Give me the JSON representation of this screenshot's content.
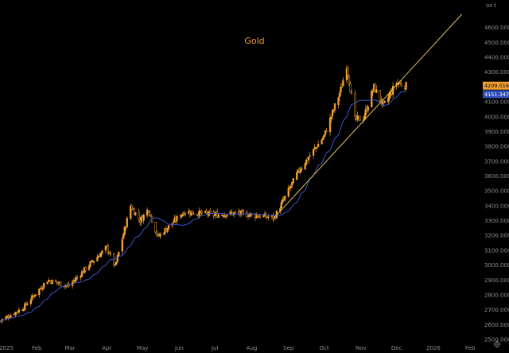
{
  "chart_data": {
    "type": "candlestick",
    "title": "Gold",
    "unit_label": "oz t",
    "ylim": [
      2500,
      4700
    ],
    "grid": false,
    "y_ticks": [
      "4600.0000",
      "4500.0000",
      "4400.0000",
      "4300.0000",
      "4200.0000",
      "4100.0000",
      "4000.0000",
      "3900.0000",
      "3800.0000",
      "3700.0000",
      "3600.0000",
      "3500.0000",
      "3400.0000",
      "3300.0000",
      "3200.0000",
      "3100.0000",
      "3000.0000",
      "2900.0000",
      "2800.0000",
      "2700.0000",
      "2600.0000",
      "2500.0000"
    ],
    "x_ticks": [
      "2025",
      "Feb",
      "Mar",
      "Apr",
      "May",
      "Jun",
      "Jul",
      "Aug",
      "Sep",
      "Oct",
      "Nov",
      "Dec",
      "2026",
      "Feb"
    ],
    "last_price_label": "4209.0161",
    "ma_price_label": "4151.3470",
    "close_anchors": [
      {
        "date": "2025-01-01",
        "close": 2625
      },
      {
        "date": "2025-01-20",
        "close": 2710
      },
      {
        "date": "2025-02-10",
        "close": 2900
      },
      {
        "date": "2025-02-28",
        "close": 2860
      },
      {
        "date": "2025-03-18",
        "close": 3010
      },
      {
        "date": "2025-04-01",
        "close": 3120
      },
      {
        "date": "2025-04-08",
        "close": 2990
      },
      {
        "date": "2025-04-21",
        "close": 3400
      },
      {
        "date": "2025-04-29",
        "close": 3300
      },
      {
        "date": "2025-05-06",
        "close": 3380
      },
      {
        "date": "2025-05-14",
        "close": 3190
      },
      {
        "date": "2025-06-05",
        "close": 3360
      },
      {
        "date": "2025-07-01",
        "close": 3340
      },
      {
        "date": "2025-07-20",
        "close": 3350
      },
      {
        "date": "2025-08-20",
        "close": 3320
      },
      {
        "date": "2025-09-10",
        "close": 3640
      },
      {
        "date": "2025-10-01",
        "close": 3870
      },
      {
        "date": "2025-10-15",
        "close": 4180
      },
      {
        "date": "2025-10-20",
        "close": 4350
      },
      {
        "date": "2025-10-27",
        "close": 3980
      },
      {
        "date": "2025-11-03",
        "close": 3990
      },
      {
        "date": "2025-11-12",
        "close": 4200
      },
      {
        "date": "2025-11-20",
        "close": 4070
      },
      {
        "date": "2025-12-01",
        "close": 4230
      },
      {
        "date": "2025-12-09",
        "close": 4209
      }
    ],
    "trendline": {
      "from": {
        "date": "2025-08-20",
        "value": 3320
      },
      "to": {
        "date": "2026-01-25",
        "value": 4690
      }
    },
    "colors": {
      "background": "#000000",
      "candle": "#f0a030",
      "ma": "#3a56c8",
      "trendline": "#e0c060",
      "axis_text": "#8f8f8f",
      "last_tag": "#f0a030",
      "ma_tag": "#2f4db8"
    }
  }
}
